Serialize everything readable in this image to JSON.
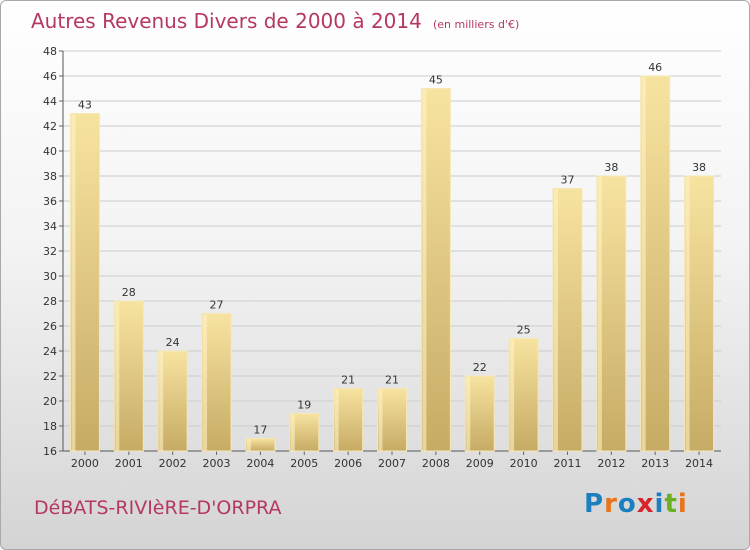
{
  "title": "Autres Revenus Divers de 2000 à 2014",
  "unit": "(en milliers d'€)",
  "commune": "DéBATS-RIVIèRE-D'ORPRA",
  "logo": {
    "letters": [
      "P",
      "r",
      "o",
      "x",
      "i",
      "t",
      "i"
    ],
    "colors": [
      "#1e7fc0",
      "#e8731a",
      "#1e7fc0",
      "#d8232a",
      "#1e7fc0",
      "#6ab023",
      "#e8731a"
    ]
  },
  "colors": {
    "title": "#b5385f",
    "bar_light": "#f7e3a0",
    "bar_dark": "#c6ab64",
    "grid": "#cccccc"
  },
  "chart_data": {
    "type": "bar",
    "title": "Autres Revenus Divers de 2000 à 2014",
    "categories": [
      "2000",
      "2001",
      "2002",
      "2003",
      "2004",
      "2005",
      "2006",
      "2007",
      "2008",
      "2009",
      "2010",
      "2011",
      "2012",
      "2013",
      "2014"
    ],
    "values": [
      43,
      28,
      24,
      27,
      17,
      19,
      21,
      21,
      45,
      22,
      25,
      37,
      38,
      46,
      38
    ],
    "ylim": [
      16,
      48
    ],
    "yticks": [
      16,
      18,
      20,
      22,
      24,
      26,
      28,
      30,
      32,
      34,
      36,
      38,
      40,
      42,
      44,
      46,
      48
    ],
    "grid": true,
    "legend": "none"
  }
}
